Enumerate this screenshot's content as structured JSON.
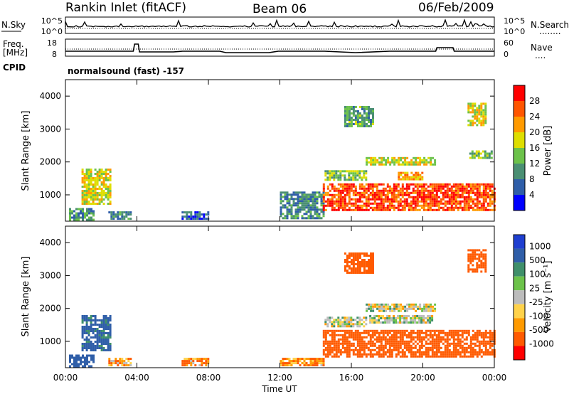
{
  "header": {
    "station": "Rankin Inlet (fitACF)",
    "beam": "Beam 06",
    "date": "06/Feb/2009"
  },
  "nsky_panel": {
    "left_label": "N.Sky",
    "left_ticks": [
      "10^5",
      "10^0"
    ],
    "right_ticks": [
      "10^5",
      "10^0"
    ],
    "right_label": "N.Search",
    "right_marker": "........"
  },
  "freq_panel": {
    "left_label_line1": "Freq.",
    "left_label_line2": "[MHz]",
    "left_ticks": [
      "18",
      "8"
    ],
    "right_ticks": [
      "60",
      "0"
    ],
    "right_label": "Nave",
    "right_marker": "...."
  },
  "cpid": {
    "label": "CPID",
    "program": "normalsound (fast) -157"
  },
  "colors": {
    "power_scale": [
      "#0000ff",
      "#2f5ea8",
      "#4a8f73",
      "#6cc24a",
      "#dede00",
      "#ff9a00",
      "#ff5500",
      "#ff0000"
    ],
    "velocity_scale": [
      "#ff0000",
      "#ff5a00",
      "#ff9a00",
      "#ffd24a",
      "#bcbcbc",
      "#6cc24a",
      "#3f8f6a",
      "#2f5ea8",
      "#1f3fd0"
    ]
  },
  "chart_data": [
    {
      "type": "heatmap",
      "name": "power",
      "ylabel": "Slant Range [km]",
      "yticks": [
        "1000",
        "2000",
        "3000",
        "4000"
      ],
      "ylim": [
        200,
        4500
      ],
      "colorbar_label": "Power [dB]",
      "colorbar_ticks": [
        "4",
        "8",
        "12",
        "16",
        "20",
        "24",
        "28"
      ],
      "regions": [
        {
          "t": [
            0.9,
            2.5
          ],
          "r": [
            700,
            1800
          ],
          "v": 18
        },
        {
          "t": [
            0.2,
            1.6
          ],
          "r": [
            250,
            600
          ],
          "v": 10
        },
        {
          "t": [
            2.4,
            3.6
          ],
          "r": [
            250,
            500
          ],
          "v": 8
        },
        {
          "t": [
            6.5,
            8.0
          ],
          "r": [
            300,
            500
          ],
          "v": 6
        },
        {
          "t": [
            12.0,
            14.4
          ],
          "r": [
            300,
            1100
          ],
          "v": 9
        },
        {
          "t": [
            14.4,
            24.0
          ],
          "r": [
            550,
            1350
          ],
          "v": 27
        },
        {
          "t": [
            14.5,
            16.8
          ],
          "r": [
            1450,
            1750
          ],
          "v": 15
        },
        {
          "t": [
            16.8,
            20.7
          ],
          "r": [
            1900,
            2150
          ],
          "v": 17
        },
        {
          "t": [
            18.6,
            20.0
          ],
          "r": [
            1500,
            1700
          ],
          "v": 22
        },
        {
          "t": [
            15.6,
            17.2
          ],
          "r": [
            3100,
            3700
          ],
          "v": 12
        },
        {
          "t": [
            22.5,
            23.5
          ],
          "r": [
            3100,
            3800
          ],
          "v": 18
        },
        {
          "t": [
            22.6,
            23.8
          ],
          "r": [
            2150,
            2350
          ],
          "v": 14
        }
      ]
    },
    {
      "type": "heatmap",
      "name": "velocity",
      "ylabel": "Slant Range [km]",
      "yticks": [
        "1000",
        "2000",
        "3000",
        "4000"
      ],
      "ylim": [
        200,
        4500
      ],
      "xlabel": "Time UT",
      "xticks": [
        "00:00",
        "04:00",
        "08:00",
        "12:00",
        "16:00",
        "20:00",
        "00:00"
      ],
      "xlim": [
        0,
        24
      ],
      "colorbar_label": "Velocity [m s⁻¹]",
      "colorbar_ticks": [
        "1000",
        "500",
        "100",
        "25",
        "-25",
        "-100",
        "-500",
        "-1000"
      ],
      "regions": [
        {
          "t": [
            0.9,
            2.5
          ],
          "r": [
            700,
            1800
          ],
          "v": 150
        },
        {
          "t": [
            0.2,
            1.6
          ],
          "r": [
            250,
            600
          ],
          "v": 300
        },
        {
          "t": [
            2.4,
            3.6
          ],
          "r": [
            250,
            500
          ],
          "v": -80
        },
        {
          "t": [
            6.5,
            8.0
          ],
          "r": [
            300,
            500
          ],
          "v": -90
        },
        {
          "t": [
            12.0,
            14.4
          ],
          "r": [
            250,
            500
          ],
          "v": -100
        },
        {
          "t": [
            14.4,
            24.0
          ],
          "r": [
            550,
            1350
          ],
          "v": -250
        },
        {
          "t": [
            14.5,
            16.8
          ],
          "r": [
            1450,
            1750
          ],
          "v": 0
        },
        {
          "t": [
            16.8,
            20.7
          ],
          "r": [
            1900,
            2150
          ],
          "v": 0
        },
        {
          "t": [
            17.0,
            20.5
          ],
          "r": [
            1600,
            1800
          ],
          "v": 0
        },
        {
          "t": [
            15.6,
            17.2
          ],
          "r": [
            3100,
            3700
          ],
          "v": -200
        },
        {
          "t": [
            22.5,
            23.5
          ],
          "r": [
            3100,
            3800
          ],
          "v": -200
        }
      ]
    }
  ]
}
